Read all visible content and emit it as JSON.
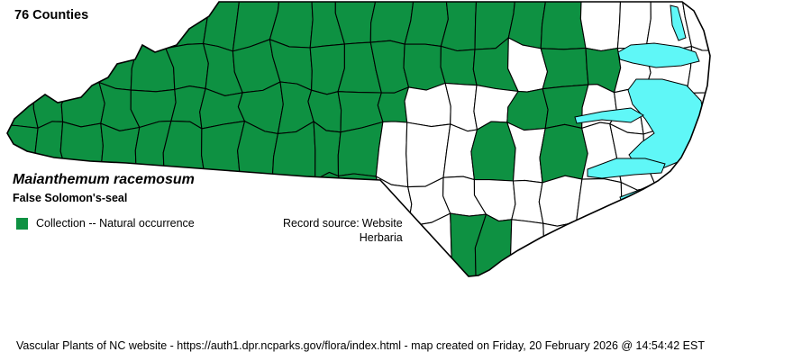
{
  "header": {
    "count_label": "76 Counties"
  },
  "species": {
    "scientific_name": "Maianthemum racemosum",
    "common_name": "False Solomon's-seal"
  },
  "legend": {
    "item_label": "Collection -- Natural occurrence",
    "item_color": "#0E9142"
  },
  "record_source": {
    "label": "Record source:",
    "line1": "Website",
    "line2": "Herbaria"
  },
  "footer": {
    "text": "Vascular Plants of NC website - https://auth1.dpr.ncparks.gov/flora/index.html - map created on Friday, 20 February 2026 @ 14:54:42 EST"
  },
  "map": {
    "region": "North Carolina counties",
    "counties_total": 100,
    "counties_with_occurrence": 76,
    "colors": {
      "occurrence": "#0E9142",
      "no_occurrence": "#FFFFFF",
      "water": "#5FF7F7",
      "border": "#000000"
    },
    "no_occurrence_cells": [
      "0,17",
      "0,18",
      "0,19",
      "0,20",
      "0,21",
      "1,15",
      "1,18",
      "1,19",
      "1,20",
      "1,21",
      "2,12",
      "2,13",
      "2,14",
      "2,17",
      "2,18",
      "2,19",
      "2,20",
      "2,21",
      "3,11",
      "3,12",
      "3,13",
      "3,15",
      "3,17",
      "3,18",
      "3,19",
      "3,20",
      "3,21",
      "4,11",
      "4,12",
      "4,13",
      "4,14",
      "4,15",
      "4,16",
      "4,17",
      "4,18",
      "4,19",
      "4,20",
      "4,21",
      "5,11",
      "5,12",
      "5,15",
      "5,16",
      "5,17"
    ]
  }
}
